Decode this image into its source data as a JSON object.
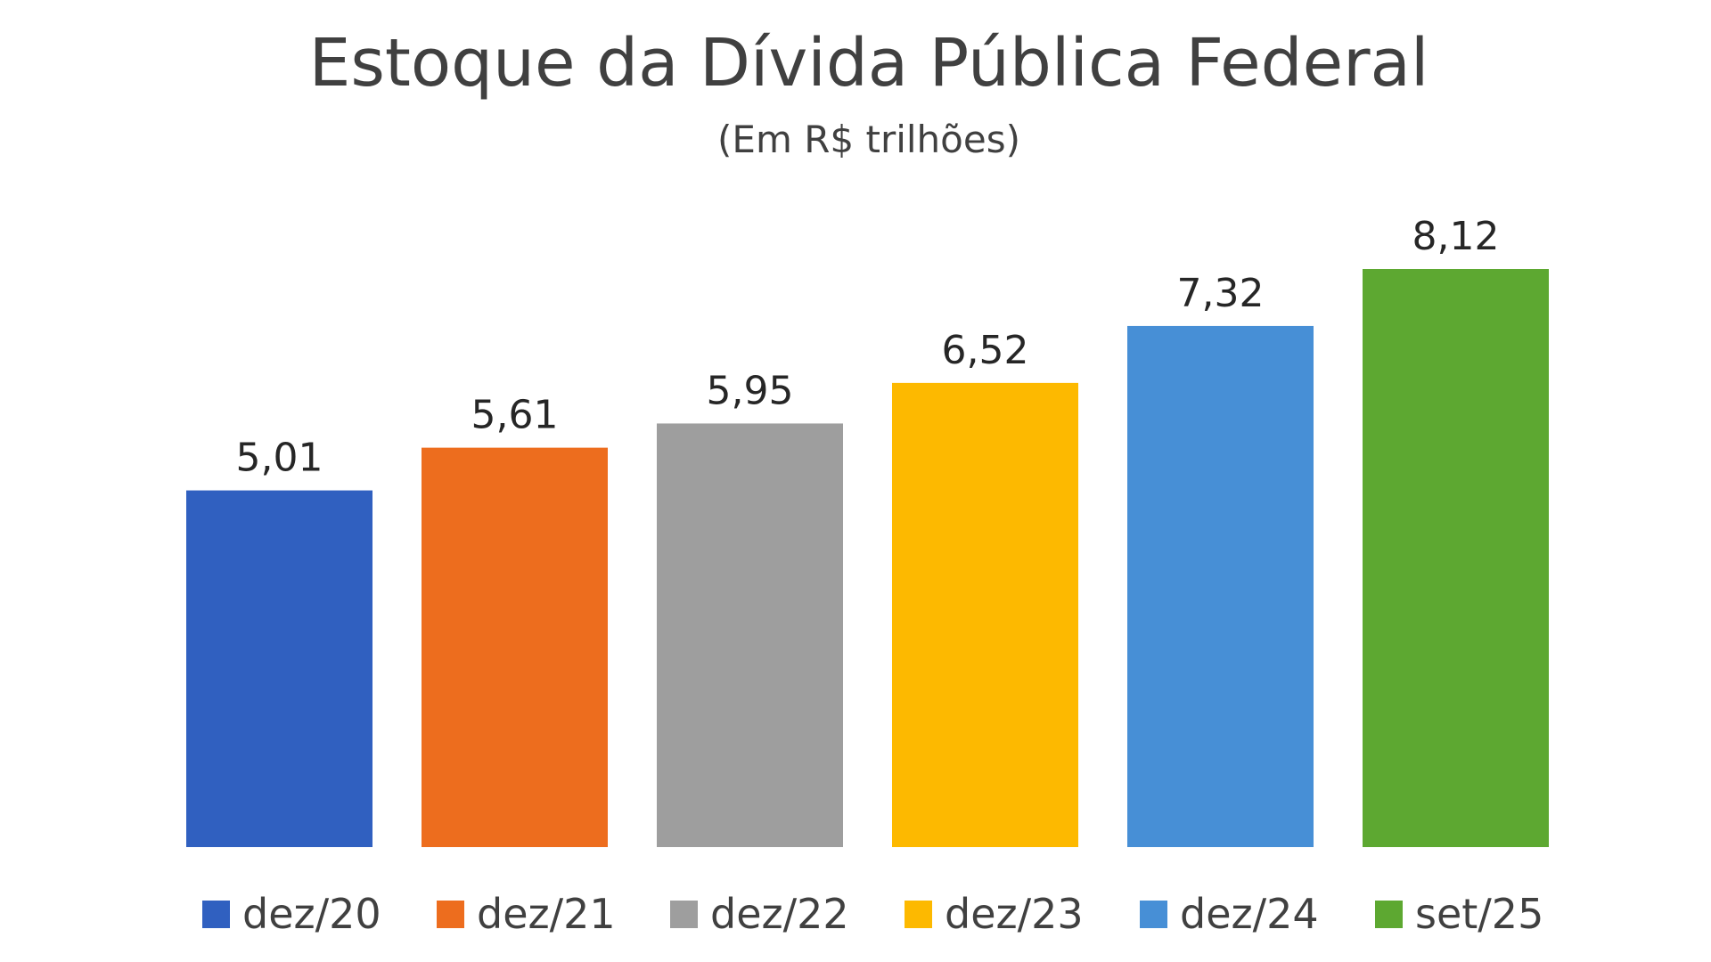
{
  "chart_data": {
    "type": "bar",
    "title": "Estoque da Dívida Pública Federal",
    "subtitle": "(Em R$ trilhões)",
    "categories": [
      "dez/20",
      "dez/21",
      "dez/22",
      "dez/23",
      "dez/24",
      "set/25"
    ],
    "values": [
      5.01,
      5.61,
      5.95,
      6.52,
      7.32,
      8.12
    ],
    "data_labels": [
      "5,01",
      "5,61",
      "5,95",
      "6,52",
      "7,32",
      "8,12"
    ],
    "colors": [
      "#3060C0",
      "#ED6D1E",
      "#9E9E9E",
      "#FDB900",
      "#478FD6",
      "#5DA831"
    ],
    "ylim": [
      0,
      8.12
    ],
    "grid": false,
    "legend_position": "bottom"
  }
}
